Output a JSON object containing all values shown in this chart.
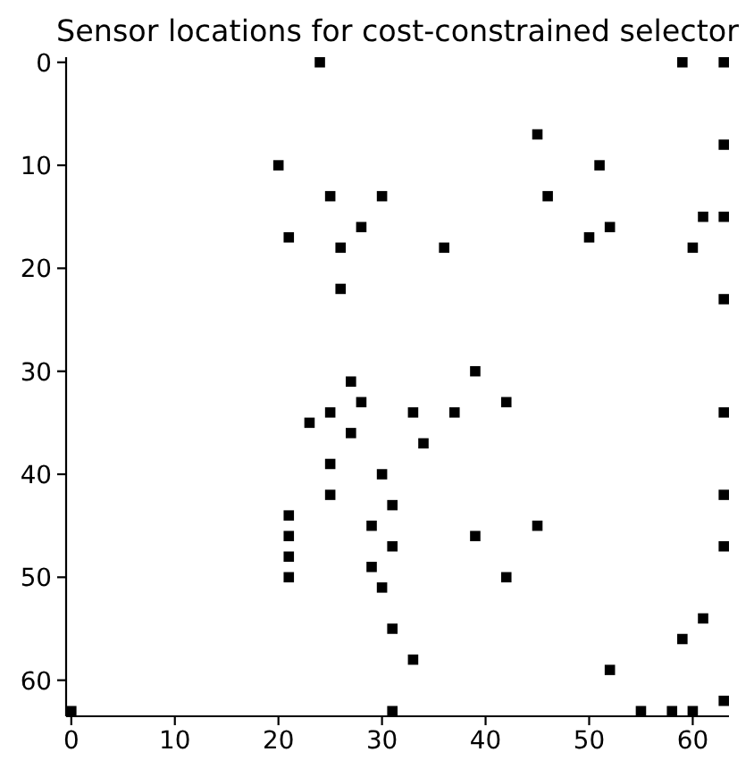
{
  "chart_data": {
    "type": "scatter",
    "title": "Sensor locations for cost-constrained selector",
    "x": [
      24,
      59,
      63,
      45,
      63,
      20,
      51,
      25,
      30,
      46,
      61,
      63,
      28,
      52,
      21,
      50,
      26,
      36,
      60,
      26,
      63,
      39,
      27,
      28,
      42,
      25,
      33,
      37,
      63,
      23,
      27,
      34,
      25,
      30,
      25,
      63,
      31,
      21,
      29,
      45,
      21,
      39,
      31,
      63,
      21,
      29,
      21,
      42,
      30,
      61,
      31,
      59,
      33,
      52,
      63,
      0,
      31,
      55,
      58,
      60
    ],
    "values": [
      0,
      0,
      0,
      7,
      8,
      10,
      10,
      13,
      13,
      13,
      15,
      15,
      16,
      16,
      17,
      17,
      18,
      18,
      18,
      22,
      23,
      30,
      31,
      33,
      33,
      34,
      34,
      34,
      34,
      35,
      36,
      37,
      39,
      40,
      42,
      42,
      43,
      44,
      45,
      45,
      46,
      46,
      47,
      47,
      48,
      49,
      50,
      50,
      51,
      54,
      55,
      56,
      58,
      59,
      62,
      63,
      63,
      63,
      63,
      63
    ],
    "color": "#000000",
    "marker": "square",
    "xlim": [
      -0.5,
      63.5
    ],
    "ylim": [
      63.5,
      -0.5
    ],
    "xticks": [
      0,
      10,
      20,
      30,
      40,
      50,
      60
    ],
    "yticks": [
      0,
      10,
      20,
      30,
      40,
      50,
      60
    ]
  }
}
